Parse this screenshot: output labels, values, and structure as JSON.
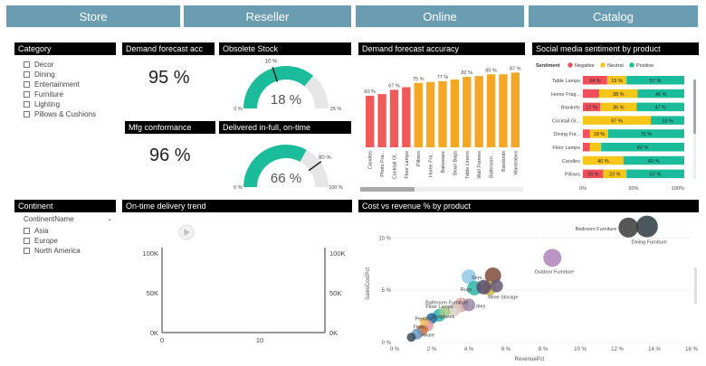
{
  "tabs": [
    "Store",
    "Reseller",
    "Online",
    "Catalog"
  ],
  "category": {
    "title": "Category",
    "items": [
      "Decor",
      "Dining",
      "Entertainment",
      "Furniture",
      "Lighting",
      "Pillows & Cushions"
    ]
  },
  "kpis": {
    "demand_title": "Demand forecast acc",
    "demand_value": "95 %",
    "mfg_title": "Mfg conformance",
    "mfg_value": "96 %"
  },
  "gauges": {
    "obsolete": {
      "title": "Obsolete Stock",
      "value": 18,
      "value_label": "18 %",
      "min_label": "0 %",
      "max_label": "25 %",
      "target_label": "10 %",
      "target": 10,
      "max": 25
    },
    "delivered": {
      "title": "Delivered in-full, on-time",
      "value": 66,
      "value_label": "66 %",
      "min_label": "0 %",
      "max_label": "100 %",
      "target_label": "80 %",
      "target": 80,
      "max": 100
    }
  },
  "continent": {
    "title": "Continent",
    "field": "ContinentName",
    "items": [
      "Asia",
      "Europe",
      "North America"
    ]
  },
  "colors": {
    "tab": "#6b9db2",
    "bar_red": "#ef5a5a",
    "bar_orange": "#f5a623",
    "teal": "#1abc9c",
    "yellow": "#f5c518",
    "neg": "#ef4f5c"
  },
  "chart_data": [
    {
      "type": "bar",
      "title": "Demand forecast accuracy",
      "categories": [
        "Candles",
        "Photo Fra...",
        "Cocktail Gl...",
        "Floor Lamps",
        "Pillows",
        "Home Fra...",
        "Bakeware",
        "Bean Bags",
        "Table Linens",
        "Wall Frames",
        "Bathroom ...",
        "Barstools",
        "Wardrobes"
      ],
      "values": [
        60,
        62,
        67,
        70,
        75,
        76,
        77,
        79,
        82,
        83,
        85,
        85,
        87
      ],
      "data_labels": [
        "60 %",
        "",
        "67 %",
        "",
        "75 %",
        "",
        "77 %",
        "",
        "82 %",
        "",
        "85 %",
        "",
        "87 %"
      ],
      "ylim": [
        0,
        100
      ]
    },
    {
      "type": "bar",
      "title": "Social media sentiment by product",
      "legend_title": "Sentiment",
      "legend": [
        "Negative",
        "Neutral",
        "Positive"
      ],
      "categories": [
        "Table Lamps",
        "Home Frag...",
        "Blankets",
        "Cocktail Gl...",
        "Dining Fur...",
        "Floor Lamps",
        "Candles",
        "Pillows"
      ],
      "series": [
        {
          "name": "Negative",
          "values": [
            24,
            16,
            17,
            0,
            7,
            7,
            0,
            20
          ]
        },
        {
          "name": "Neutral",
          "values": [
            19,
            38,
            36,
            67,
            18,
            11,
            40,
            23
          ]
        },
        {
          "name": "Positive",
          "values": [
            57,
            46,
            47,
            33,
            75,
            82,
            60,
            57
          ]
        }
      ],
      "labels": [
        [
          "24 %",
          "19 %",
          "57 %"
        ],
        [
          "",
          "38 %",
          "46 %"
        ],
        [
          "17 %",
          "36 %",
          "47 %"
        ],
        [
          "",
          "67 %",
          "33 %"
        ],
        [
          "",
          "18 %",
          "75 %"
        ],
        [
          "",
          "",
          "82 %"
        ],
        [
          "",
          "40 %",
          "60 %"
        ],
        [
          "20 %",
          "23 %",
          "57 %"
        ]
      ],
      "x_ticks": [
        "0%",
        "50%",
        "100%"
      ]
    },
    {
      "type": "line",
      "title": "On-time delivery trend",
      "y_ticks_left": [
        "100K",
        "50K",
        "0K"
      ],
      "y_ticks_right": [
        "100K",
        "50K",
        "0K"
      ],
      "x_ticks": [
        "0",
        "10"
      ],
      "ylim": [
        0,
        100000
      ],
      "xlim": [
        0,
        20
      ]
    },
    {
      "type": "scatter",
      "title": "Cost vs revenue % by product",
      "xlabel": "RevenuePct",
      "ylabel": "SalesCostPct",
      "x_ticks": [
        "0 %",
        "2 %",
        "4 %",
        "6 %",
        "8 %",
        "10 %",
        "12 %",
        "14 %",
        "16 %"
      ],
      "y_ticks": [
        "10 %",
        "5 %",
        "0 %"
      ],
      "xlim": [
        0,
        16
      ],
      "ylim": [
        0,
        11.5
      ],
      "points": [
        {
          "x": 13.6,
          "y": 11.1,
          "r": 12,
          "color": "#2b3a42",
          "label": "Dining Furniture"
        },
        {
          "x": 12.6,
          "y": 11.0,
          "r": 11,
          "color": "#3a3a3a",
          "label": "Bedroom Furniture"
        },
        {
          "x": 8.5,
          "y": 8.1,
          "r": 10,
          "color": "#b084b9",
          "label": "Outdoor Furniture"
        },
        {
          "x": 5.3,
          "y": 6.4,
          "r": 9,
          "color": "#7d4b3a",
          "label": ""
        },
        {
          "x": 4.0,
          "y": 6.3,
          "r": 8,
          "color": "#8fc8e6",
          "label": "Serv..."
        },
        {
          "x": 4.3,
          "y": 5.2,
          "r": 8,
          "color": "#2bb5a4",
          "label": "Rugs"
        },
        {
          "x": 5.1,
          "y": 5.2,
          "r": 8,
          "color": "#c9b842",
          "label": ""
        },
        {
          "x": 5.5,
          "y": 5.4,
          "r": 7,
          "color": "#6b5a7a",
          "label": "Wine Storage"
        },
        {
          "x": 4.8,
          "y": 5.3,
          "r": 8,
          "color": "#5a4a6a",
          "label": ""
        },
        {
          "x": 3.6,
          "y": 3.6,
          "r": 8,
          "color": "#e0a8a8",
          "label": "Bathroom Furniture"
        },
        {
          "x": 4.0,
          "y": 3.6,
          "r": 7,
          "color": "#9a8aaa",
          "label": "...bles"
        },
        {
          "x": 3.2,
          "y": 3.1,
          "r": 7,
          "color": "#d8d0c8",
          "label": "Floor Lamps"
        },
        {
          "x": 2.4,
          "y": 2.6,
          "r": 7,
          "color": "#2bb5a4",
          "label": "Sculptures"
        },
        {
          "x": 2.0,
          "y": 2.3,
          "r": 6,
          "color": "#1f6fa8",
          "label": "Pendant..."
        },
        {
          "x": 1.8,
          "y": 1.6,
          "r": 6,
          "color": "#e59aa0",
          "label": "Floor..."
        },
        {
          "x": 1.5,
          "y": 1.2,
          "r": 6,
          "color": "#c9703a",
          "label": ""
        },
        {
          "x": 1.2,
          "y": 0.8,
          "r": 6,
          "color": "#6a9ac8",
          "label": "...kware"
        },
        {
          "x": 0.9,
          "y": 0.5,
          "r": 5,
          "color": "#3a4a58",
          "label": ""
        },
        {
          "x": 2.7,
          "y": 2.9,
          "r": 6,
          "color": "#a0c888",
          "label": ""
        },
        {
          "x": 1.6,
          "y": 2.0,
          "r": 5,
          "color": "#f0c060",
          "label": ""
        }
      ]
    }
  ]
}
